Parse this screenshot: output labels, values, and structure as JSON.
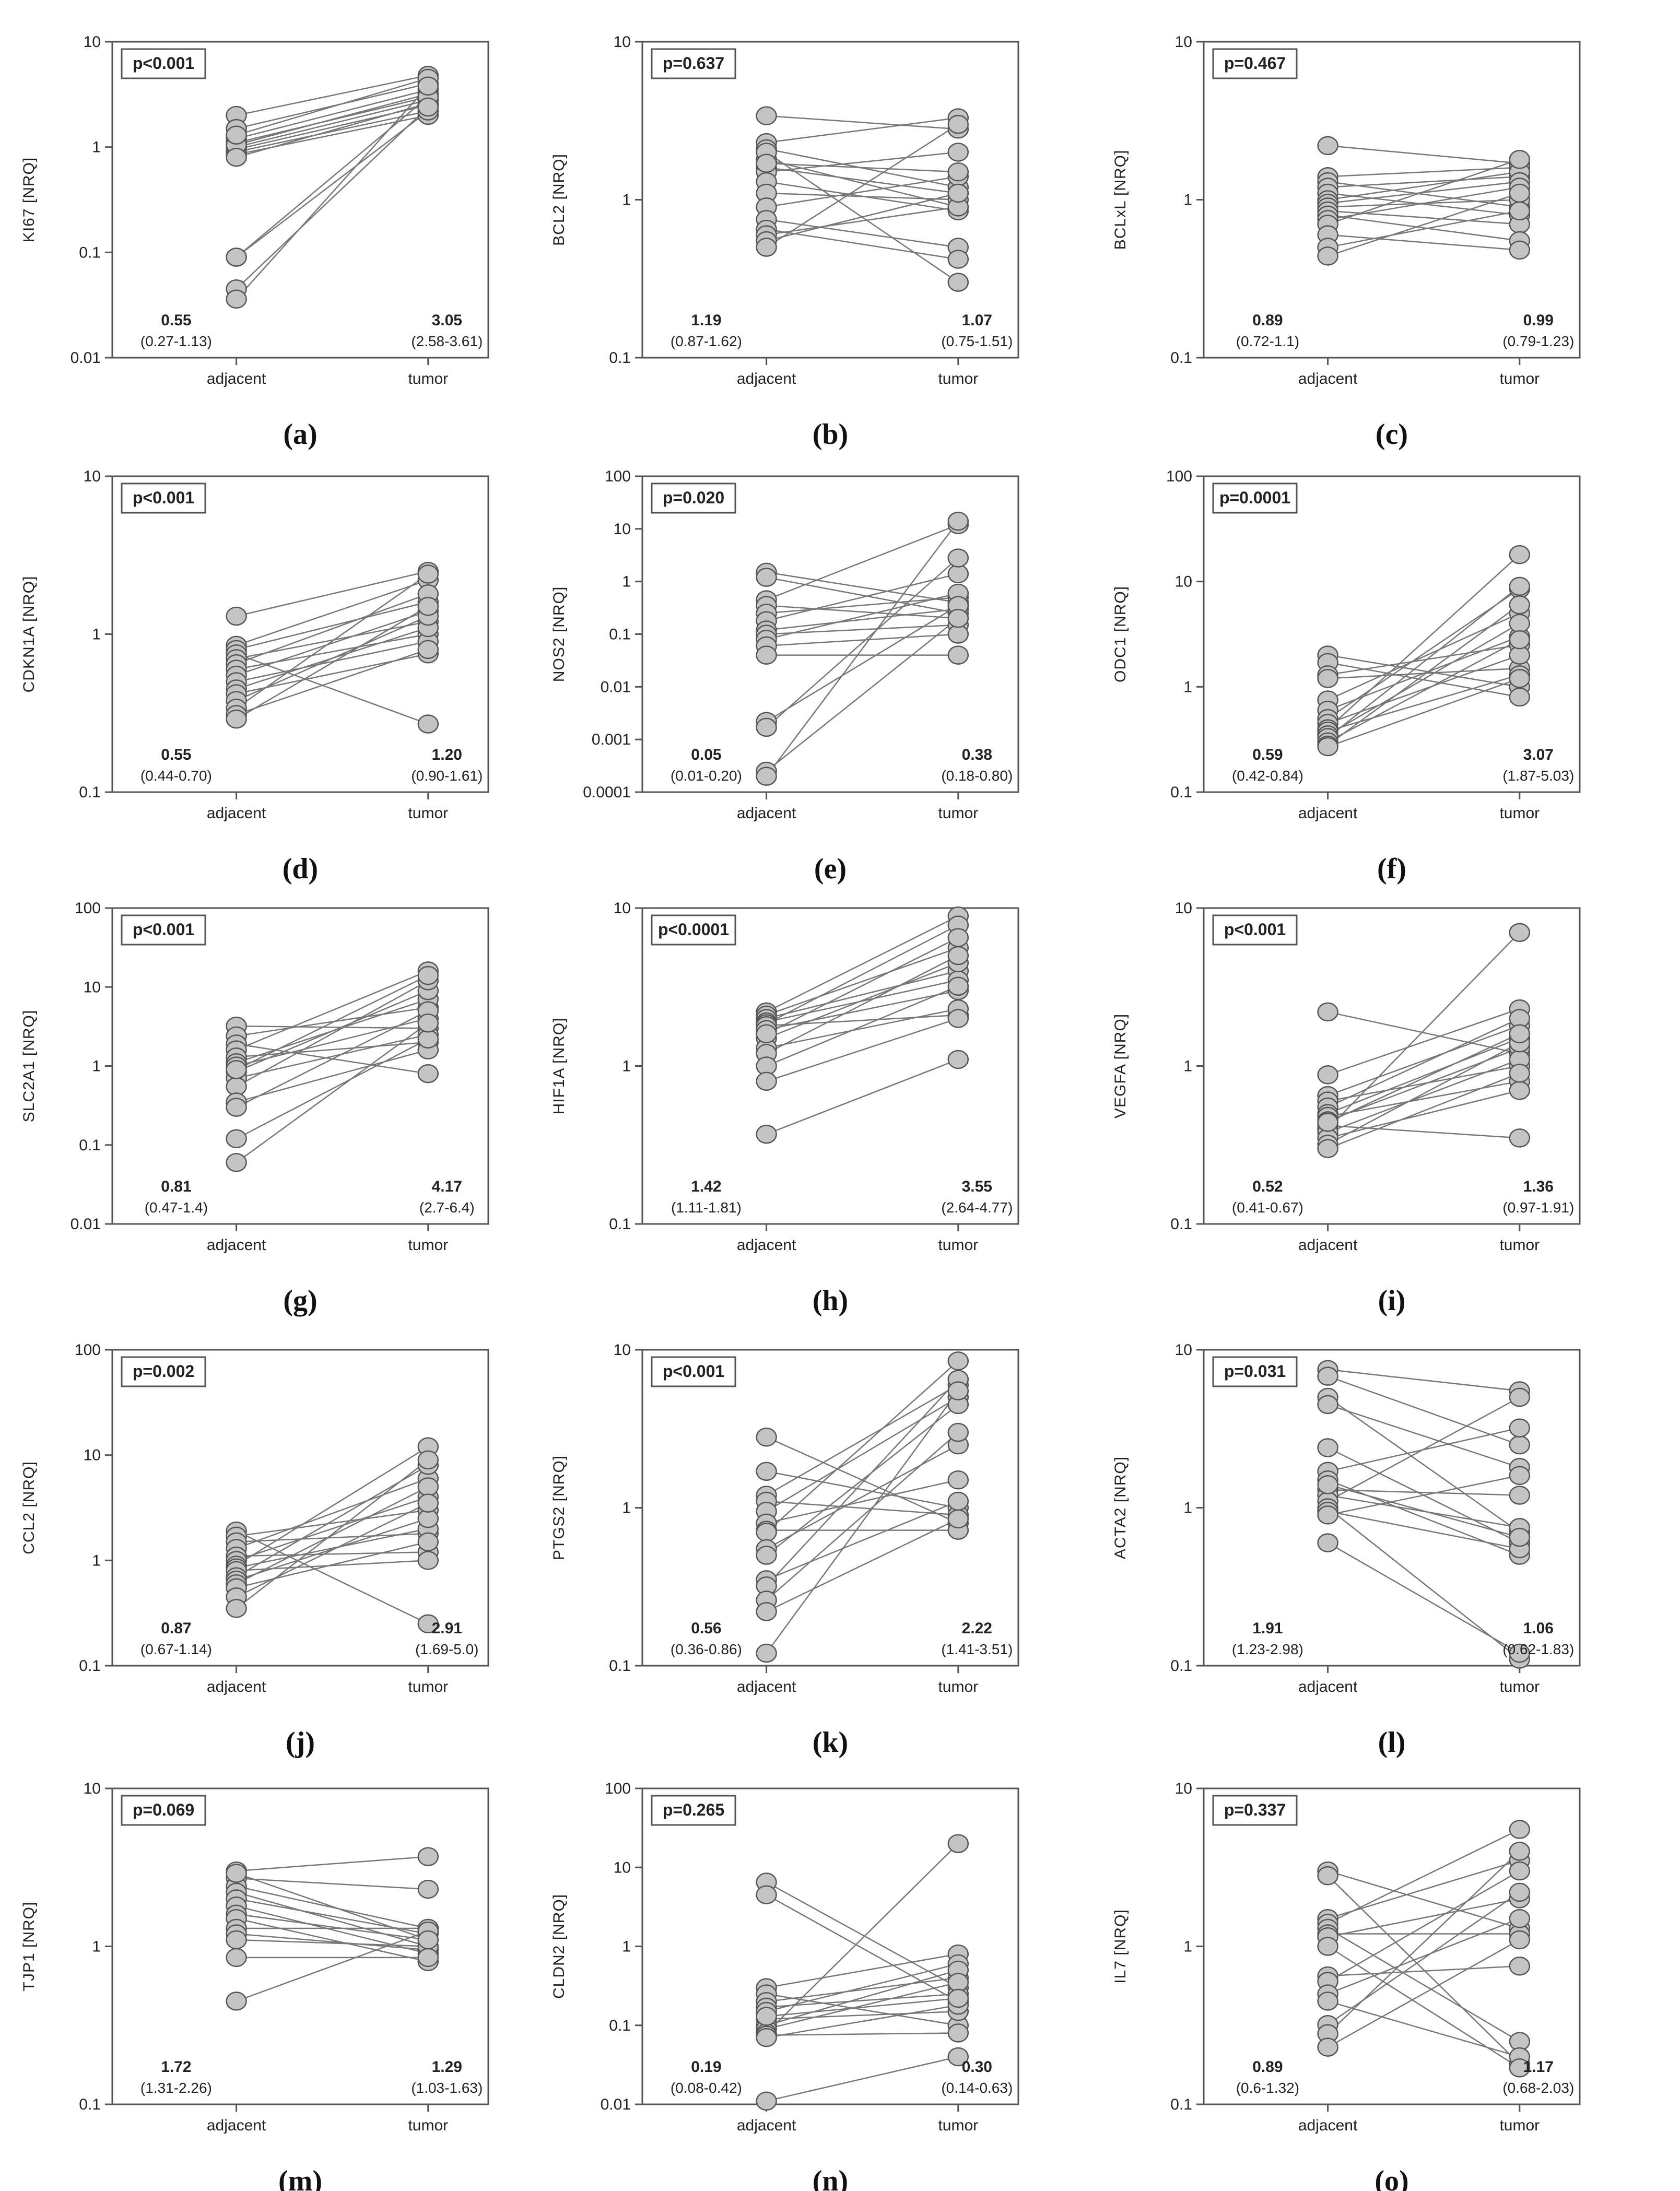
{
  "chart_data": [
    {
      "panel": "(a)",
      "type": "scatter",
      "ylabel": "KI67 [NRQ]",
      "ylim": [
        0.01,
        10
      ],
      "yticks": [
        "0.01",
        "0.1",
        "1",
        "10"
      ],
      "categories": [
        "adjacent",
        "tumor"
      ],
      "p_value": "p<0.001",
      "median_adjacent": "0.55",
      "ci_adjacent": "(0.27-1.13)",
      "median_tumor": "3.05",
      "ci_tumor": "(2.58-3.61)",
      "pairs": [
        [
          2.0,
          4.8
        ],
        [
          1.5,
          4.0
        ],
        [
          1.2,
          3.5
        ],
        [
          1.1,
          3.0
        ],
        [
          1.0,
          2.8
        ],
        [
          0.95,
          2.5
        ],
        [
          0.9,
          2.2
        ],
        [
          0.85,
          2.0
        ],
        [
          1.05,
          3.2
        ],
        [
          0.8,
          2.6
        ],
        [
          1.3,
          4.5
        ],
        [
          0.09,
          2.2
        ],
        [
          0.09,
          3.0
        ],
        [
          0.045,
          2.4
        ],
        [
          0.036,
          3.8
        ]
      ]
    },
    {
      "panel": "(b)",
      "type": "scatter",
      "ylabel": "BCL2 [NRQ]",
      "ylim": [
        0.1,
        10
      ],
      "yticks": [
        "0.1",
        "1",
        "10"
      ],
      "categories": [
        "adjacent",
        "tumor"
      ],
      "p_value": "p=0.637",
      "median_adjacent": "1.19",
      "ci_adjacent": "(0.87-1.62)",
      "median_tumor": "1.07",
      "ci_tumor": "(0.75-1.51)",
      "pairs": [
        [
          3.4,
          2.8
        ],
        [
          2.3,
          3.3
        ],
        [
          2.1,
          1.2
        ],
        [
          1.8,
          0.9
        ],
        [
          1.6,
          1.1
        ],
        [
          1.5,
          2.0
        ],
        [
          1.3,
          0.85
        ],
        [
          1.1,
          1.0
        ],
        [
          0.9,
          1.4
        ],
        [
          0.75,
          0.5
        ],
        [
          0.65,
          0.42
        ],
        [
          0.6,
          0.9
        ],
        [
          0.55,
          1.1
        ],
        [
          0.5,
          3.0
        ],
        [
          2.0,
          0.3
        ],
        [
          1.7,
          1.5
        ]
      ]
    },
    {
      "panel": "(c)",
      "type": "scatter",
      "ylabel": "BCLxL [NRQ]",
      "ylim": [
        0.1,
        10
      ],
      "yticks": [
        "0.1",
        "1",
        "10"
      ],
      "categories": [
        "adjacent",
        "tumor"
      ],
      "p_value": "p=0.467",
      "median_adjacent": "0.89",
      "ci_adjacent": "(0.72-1.1)",
      "median_tumor": "0.99",
      "ci_tumor": "(0.79-1.23)",
      "pairs": [
        [
          2.2,
          1.7
        ],
        [
          1.4,
          1.6
        ],
        [
          1.3,
          0.9
        ],
        [
          1.2,
          1.4
        ],
        [
          1.1,
          0.8
        ],
        [
          1.0,
          1.5
        ],
        [
          0.95,
          1.3
        ],
        [
          0.9,
          1.0
        ],
        [
          0.85,
          0.7
        ],
        [
          0.8,
          0.55
        ],
        [
          0.75,
          1.2
        ],
        [
          0.7,
          1.8
        ],
        [
          0.6,
          0.48
        ],
        [
          0.5,
          0.85
        ],
        [
          0.44,
          1.1
        ]
      ]
    },
    {
      "panel": "(d)",
      "type": "scatter",
      "ylabel": "CDKN1A [NRQ]",
      "ylim": [
        0.1,
        10
      ],
      "yticks": [
        "0.1",
        "1",
        "10"
      ],
      "categories": [
        "adjacent",
        "tumor"
      ],
      "p_value": "p<0.001",
      "median_adjacent": "0.55",
      "ci_adjacent": "(0.44-0.70)",
      "median_tumor": "1.20",
      "ci_tumor": "(0.90-1.61)",
      "pairs": [
        [
          1.3,
          2.5
        ],
        [
          0.85,
          2.2
        ],
        [
          0.8,
          1.6
        ],
        [
          0.75,
          0.27
        ],
        [
          0.7,
          1.2
        ],
        [
          0.65,
          1.8
        ],
        [
          0.6,
          1.0
        ],
        [
          0.55,
          1.4
        ],
        [
          0.5,
          0.9
        ],
        [
          0.45,
          1.1
        ],
        [
          0.42,
          0.75
        ],
        [
          0.38,
          1.3
        ],
        [
          0.34,
          2.4
        ],
        [
          0.31,
          0.8
        ],
        [
          0.29,
          1.5
        ]
      ]
    },
    {
      "panel": "(e)",
      "type": "scatter",
      "ylabel": "NOS2 [NRQ]",
      "ylim": [
        0.0001,
        100
      ],
      "yticks": [
        "0.0001",
        "0.001",
        "0.01",
        "0.1",
        "1",
        "10",
        "100"
      ],
      "categories": [
        "adjacent",
        "tumor"
      ],
      "p_value": "p=0.020",
      "median_adjacent": "0.05",
      "ci_adjacent": "(0.01-0.20)",
      "median_tumor": "0.38",
      "ci_tumor": "(0.18-0.80)",
      "pairs": [
        [
          1.5,
          0.4
        ],
        [
          1.2,
          0.25
        ],
        [
          0.45,
          12
        ],
        [
          0.35,
          0.2
        ],
        [
          0.25,
          0.5
        ],
        [
          0.18,
          1.4
        ],
        [
          0.12,
          0.3
        ],
        [
          0.1,
          0.15
        ],
        [
          0.08,
          0.6
        ],
        [
          0.06,
          0.1
        ],
        [
          0.04,
          0.04
        ],
        [
          0.0022,
          0.35
        ],
        [
          0.0017,
          2.8
        ],
        [
          0.00025,
          0.2
        ],
        [
          0.0002,
          14
        ]
      ]
    },
    {
      "panel": "(f)",
      "type": "scatter",
      "ylabel": "ODC1 [NRQ]",
      "ylim": [
        0.1,
        100
      ],
      "yticks": [
        "0.1",
        "1",
        "10",
        "100"
      ],
      "categories": [
        "adjacent",
        "tumor"
      ],
      "p_value": "p=0.0001",
      "median_adjacent": "0.59",
      "ci_adjacent": "(0.42-0.84)",
      "median_tumor": "3.07",
      "ci_tumor": "(1.87-5.03)",
      "pairs": [
        [
          2.0,
          1.0
        ],
        [
          1.7,
          0.8
        ],
        [
          1.3,
          2.5
        ],
        [
          1.2,
          1.5
        ],
        [
          0.75,
          5.0
        ],
        [
          0.6,
          3.0
        ],
        [
          0.5,
          8.5
        ],
        [
          0.45,
          2.0
        ],
        [
          0.4,
          18
        ],
        [
          0.38,
          1.3
        ],
        [
          0.35,
          4.0
        ],
        [
          0.33,
          9.0
        ],
        [
          0.3,
          2.8
        ],
        [
          0.28,
          6.0
        ],
        [
          0.27,
          1.2
        ]
      ]
    },
    {
      "panel": "(g)",
      "type": "scatter",
      "ylabel": "SLC2A1 [NRQ]",
      "ylim": [
        0.01,
        100
      ],
      "yticks": [
        "0.01",
        "0.1",
        "1",
        "10",
        "100"
      ],
      "categories": [
        "adjacent",
        "tumor"
      ],
      "p_value": "p<0.001",
      "median_adjacent": "0.81",
      "ci_adjacent": "(0.47-1.4)",
      "median_tumor": "4.17",
      "ci_tumor": "(2.7-6.4)",
      "pairs": [
        [
          3.2,
          3.0
        ],
        [
          2.4,
          5.5
        ],
        [
          1.9,
          0.8
        ],
        [
          1.6,
          16
        ],
        [
          1.3,
          2.0
        ],
        [
          1.1,
          7.0
        ],
        [
          1.0,
          4.0
        ],
        [
          0.85,
          9.0
        ],
        [
          0.7,
          2.5
        ],
        [
          0.55,
          12
        ],
        [
          0.35,
          1.6
        ],
        [
          0.3,
          5.0
        ],
        [
          0.12,
          2.2
        ],
        [
          0.06,
          3.5
        ],
        [
          0.9,
          14
        ]
      ]
    },
    {
      "panel": "(h)",
      "type": "scatter",
      "ylabel": "HIF1A [NRQ]",
      "ylim": [
        0.1,
        10
      ],
      "yticks": [
        "0.1",
        "1",
        "10"
      ],
      "categories": [
        "adjacent",
        "tumor"
      ],
      "p_value": "p<0.0001",
      "median_adjacent": "1.42",
      "ci_adjacent": "(1.11-1.81)",
      "median_tumor": "3.55",
      "ci_tumor": "(2.64-4.77)",
      "pairs": [
        [
          2.2,
          8.9
        ],
        [
          2.1,
          5.6
        ],
        [
          2.0,
          4.0
        ],
        [
          1.9,
          3.5
        ],
        [
          1.85,
          7.8
        ],
        [
          1.8,
          2.1
        ],
        [
          1.7,
          3.0
        ],
        [
          1.5,
          4.5
        ],
        [
          1.3,
          2.3
        ],
        [
          1.2,
          5.0
        ],
        [
          1.0,
          3.2
        ],
        [
          0.8,
          2.0
        ],
        [
          0.37,
          1.1
        ],
        [
          1.6,
          6.5
        ]
      ]
    },
    {
      "panel": "(i)",
      "type": "scatter",
      "ylabel": "VEGFA [NRQ]",
      "ylim": [
        0.1,
        10
      ],
      "yticks": [
        "0.1",
        "1",
        "10"
      ],
      "categories": [
        "adjacent",
        "tumor"
      ],
      "p_value": "p<0.001",
      "median_adjacent": "0.52",
      "ci_adjacent": "(0.41-0.67)",
      "median_tumor": "1.36",
      "ci_tumor": "(0.97-1.91)",
      "pairs": [
        [
          2.2,
          1.2
        ],
        [
          0.88,
          2.3
        ],
        [
          0.65,
          1.8
        ],
        [
          0.6,
          1.0
        ],
        [
          0.55,
          2.0
        ],
        [
          0.5,
          1.5
        ],
        [
          0.48,
          0.8
        ],
        [
          0.45,
          1.3
        ],
        [
          0.42,
          0.35
        ],
        [
          0.4,
          7.0
        ],
        [
          0.38,
          1.1
        ],
        [
          0.35,
          0.7
        ],
        [
          0.32,
          1.4
        ],
        [
          0.3,
          0.9
        ],
        [
          0.44,
          1.6
        ]
      ]
    },
    {
      "panel": "(j)",
      "type": "scatter",
      "ylabel": "CCL2 [NRQ]",
      "ylim": [
        0.1,
        100
      ],
      "yticks": [
        "0.1",
        "1",
        "10",
        "100"
      ],
      "categories": [
        "adjacent",
        "tumor"
      ],
      "p_value": "p=0.002",
      "median_adjacent": "0.87",
      "ci_adjacent": "(0.67-1.14)",
      "median_tumor": "2.91",
      "ci_tumor": "(1.69-5.0)",
      "pairs": [
        [
          1.9,
          0.25
        ],
        [
          1.7,
          3.0
        ],
        [
          1.5,
          1.8
        ],
        [
          1.3,
          6.0
        ],
        [
          1.1,
          1.2
        ],
        [
          1.0,
          4.0
        ],
        [
          0.9,
          12
        ],
        [
          0.85,
          2.0
        ],
        [
          0.8,
          1.0
        ],
        [
          0.7,
          8.0
        ],
        [
          0.65,
          2.5
        ],
        [
          0.6,
          5.0
        ],
        [
          0.55,
          1.5
        ],
        [
          0.45,
          3.5
        ],
        [
          0.35,
          9.0
        ]
      ]
    },
    {
      "panel": "(k)",
      "type": "scatter",
      "ylabel": "PTGS2 [NRQ]",
      "ylim": [
        0.1,
        10
      ],
      "yticks": [
        "0.1",
        "1",
        "10"
      ],
      "categories": [
        "adjacent",
        "tumor"
      ],
      "p_value": "p<0.001",
      "median_adjacent": "0.56",
      "ci_adjacent": "(0.36-0.86)",
      "median_tumor": "2.22",
      "ci_tumor": "(1.41-3.51)",
      "pairs": [
        [
          2.8,
          0.8
        ],
        [
          1.7,
          1.0
        ],
        [
          1.2,
          6.0
        ],
        [
          1.1,
          0.9
        ],
        [
          0.95,
          5.0
        ],
        [
          0.8,
          1.5
        ],
        [
          0.72,
          0.72
        ],
        [
          0.7,
          8.5
        ],
        [
          0.55,
          2.5
        ],
        [
          0.5,
          4.5
        ],
        [
          0.35,
          1.1
        ],
        [
          0.32,
          6.5
        ],
        [
          0.26,
          3.0
        ],
        [
          0.22,
          0.85
        ],
        [
          0.12,
          5.5
        ]
      ]
    },
    {
      "panel": "(l)",
      "type": "scatter",
      "ylabel": "ACTA2 [NRQ]",
      "ylim": [
        0.1,
        10
      ],
      "yticks": [
        "0.1",
        "1",
        "10"
      ],
      "categories": [
        "adjacent",
        "tumor"
      ],
      "p_value": "p=0.031",
      "median_adjacent": "1.91",
      "ci_adjacent": "(1.23-2.98)",
      "median_tumor": "1.06",
      "ci_tumor": "(0.62-1.83)",
      "pairs": [
        [
          7.5,
          5.5
        ],
        [
          6.8,
          2.5
        ],
        [
          5.0,
          0.7
        ],
        [
          4.5,
          1.8
        ],
        [
          2.4,
          0.6
        ],
        [
          1.7,
          3.2
        ],
        [
          1.5,
          0.5
        ],
        [
          1.3,
          1.2
        ],
        [
          1.2,
          0.75
        ],
        [
          1.1,
          5.0
        ],
        [
          1.0,
          0.11
        ],
        [
          0.95,
          0.55
        ],
        [
          0.9,
          1.6
        ],
        [
          0.6,
          0.12
        ],
        [
          1.4,
          0.65
        ]
      ]
    },
    {
      "panel": "(m)",
      "type": "scatter",
      "ylabel": "TJP1 [NRQ]",
      "ylim": [
        0.1,
        10
      ],
      "yticks": [
        "0.1",
        "1",
        "10"
      ],
      "categories": [
        "adjacent",
        "tumor"
      ],
      "p_value": "p=0.069",
      "median_adjacent": "1.72",
      "ci_adjacent": "(1.31-2.26)",
      "median_tumor": "1.29",
      "ci_tumor": "(1.03-1.63)",
      "pairs": [
        [
          3.0,
          3.7
        ],
        [
          2.7,
          2.3
        ],
        [
          2.4,
          1.3
        ],
        [
          2.2,
          1.0
        ],
        [
          2.0,
          1.2
        ],
        [
          1.8,
          0.9
        ],
        [
          1.6,
          1.1
        ],
        [
          1.5,
          0.8
        ],
        [
          1.3,
          1.3
        ],
        [
          1.2,
          0.95
        ],
        [
          1.1,
          1.0
        ],
        [
          0.85,
          0.85
        ],
        [
          0.45,
          1.25
        ],
        [
          2.9,
          1.1
        ]
      ]
    },
    {
      "panel": "(n)",
      "type": "scatter",
      "ylabel": "CLDN2 [NRQ]",
      "ylim": [
        0.01,
        100
      ],
      "yticks": [
        "0.01",
        "0.1",
        "1",
        "10",
        "100"
      ],
      "categories": [
        "adjacent",
        "tumor"
      ],
      "p_value": "p=0.265",
      "median_adjacent": "0.19",
      "ci_adjacent": "(0.08-0.42)",
      "median_tumor": "0.30",
      "ci_tumor": "(0.14-0.63)",
      "pairs": [
        [
          6.5,
          0.3
        ],
        [
          4.5,
          0.2
        ],
        [
          0.3,
          0.8
        ],
        [
          0.25,
          0.1
        ],
        [
          0.2,
          0.4
        ],
        [
          0.17,
          0.25
        ],
        [
          0.15,
          0.6
        ],
        [
          0.12,
          0.15
        ],
        [
          0.1,
          0.5
        ],
        [
          0.09,
          0.35
        ],
        [
          0.08,
          20
        ],
        [
          0.075,
          0.08
        ],
        [
          0.07,
          0.18
        ],
        [
          0.011,
          0.04
        ],
        [
          0.13,
          0.22
        ]
      ]
    },
    {
      "panel": "(o)",
      "type": "scatter",
      "ylabel": "IL7 [NRQ]",
      "ylim": [
        0.1,
        10
      ],
      "yticks": [
        "0.1",
        "1",
        "10"
      ],
      "categories": [
        "adjacent",
        "tumor"
      ],
      "p_value": "p=0.337",
      "median_adjacent": "0.89",
      "ci_adjacent": "(0.6-1.32)",
      "median_tumor": "1.17",
      "ci_tumor": "(0.68-2.03)",
      "pairs": [
        [
          3.0,
          1.3
        ],
        [
          2.8,
          0.18
        ],
        [
          1.5,
          3.5
        ],
        [
          1.4,
          5.5
        ],
        [
          1.3,
          0.25
        ],
        [
          1.2,
          1.2
        ],
        [
          1.15,
          2.0
        ],
        [
          0.65,
          0.75
        ],
        [
          0.6,
          3.0
        ],
        [
          0.5,
          1.5
        ],
        [
          0.45,
          0.2
        ],
        [
          0.32,
          2.2
        ],
        [
          0.28,
          4.0
        ],
        [
          0.23,
          1.1
        ],
        [
          1.0,
          0.17
        ]
      ]
    }
  ]
}
